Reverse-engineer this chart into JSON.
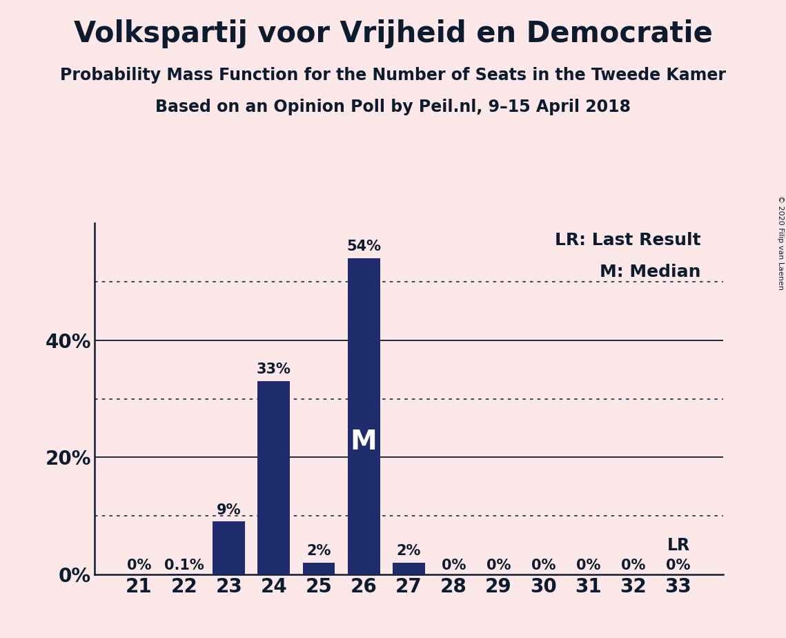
{
  "title": "Volkspartij voor Vrijheid en Democratie",
  "subtitle1": "Probability Mass Function for the Number of Seats in the Tweede Kamer",
  "subtitle2": "Based on an Opinion Poll by Peil.nl, 9–15 April 2018",
  "copyright": "© 2020 Filip van Laenen",
  "categories": [
    21,
    22,
    23,
    24,
    25,
    26,
    27,
    28,
    29,
    30,
    31,
    32,
    33
  ],
  "values": [
    0.0,
    0.1,
    9.0,
    33.0,
    2.0,
    54.0,
    2.0,
    0.0,
    0.0,
    0.0,
    0.0,
    0.0,
    0.0
  ],
  "bar_labels": [
    "0%",
    "0.1%",
    "9%",
    "33%",
    "2%",
    "54%",
    "2%",
    "0%",
    "0%",
    "0%",
    "0%",
    "0%",
    "0%"
  ],
  "bar_color": "#1f2d6e",
  "background_color": "#fce8e8",
  "text_color": "#0d1b2e",
  "yticks_solid": [
    0,
    20,
    40
  ],
  "yticks_dotted": [
    10,
    30,
    50
  ],
  "ytick_labels_positions": [
    0,
    20,
    40
  ],
  "ytick_labels_text": [
    "0%",
    "20%",
    "40%"
  ],
  "ylim": [
    0,
    60
  ],
  "legend_lr": "LR: Last Result",
  "legend_m": "M: Median",
  "median_seat": 26,
  "median_label": "M",
  "lr_seat": 33,
  "lr_label": "LR",
  "title_fontsize": 30,
  "subtitle_fontsize": 17,
  "bar_label_fontsize": 15,
  "legend_fontsize": 18,
  "tick_fontsize": 20,
  "median_fontsize": 28,
  "lr_fontsize": 17
}
